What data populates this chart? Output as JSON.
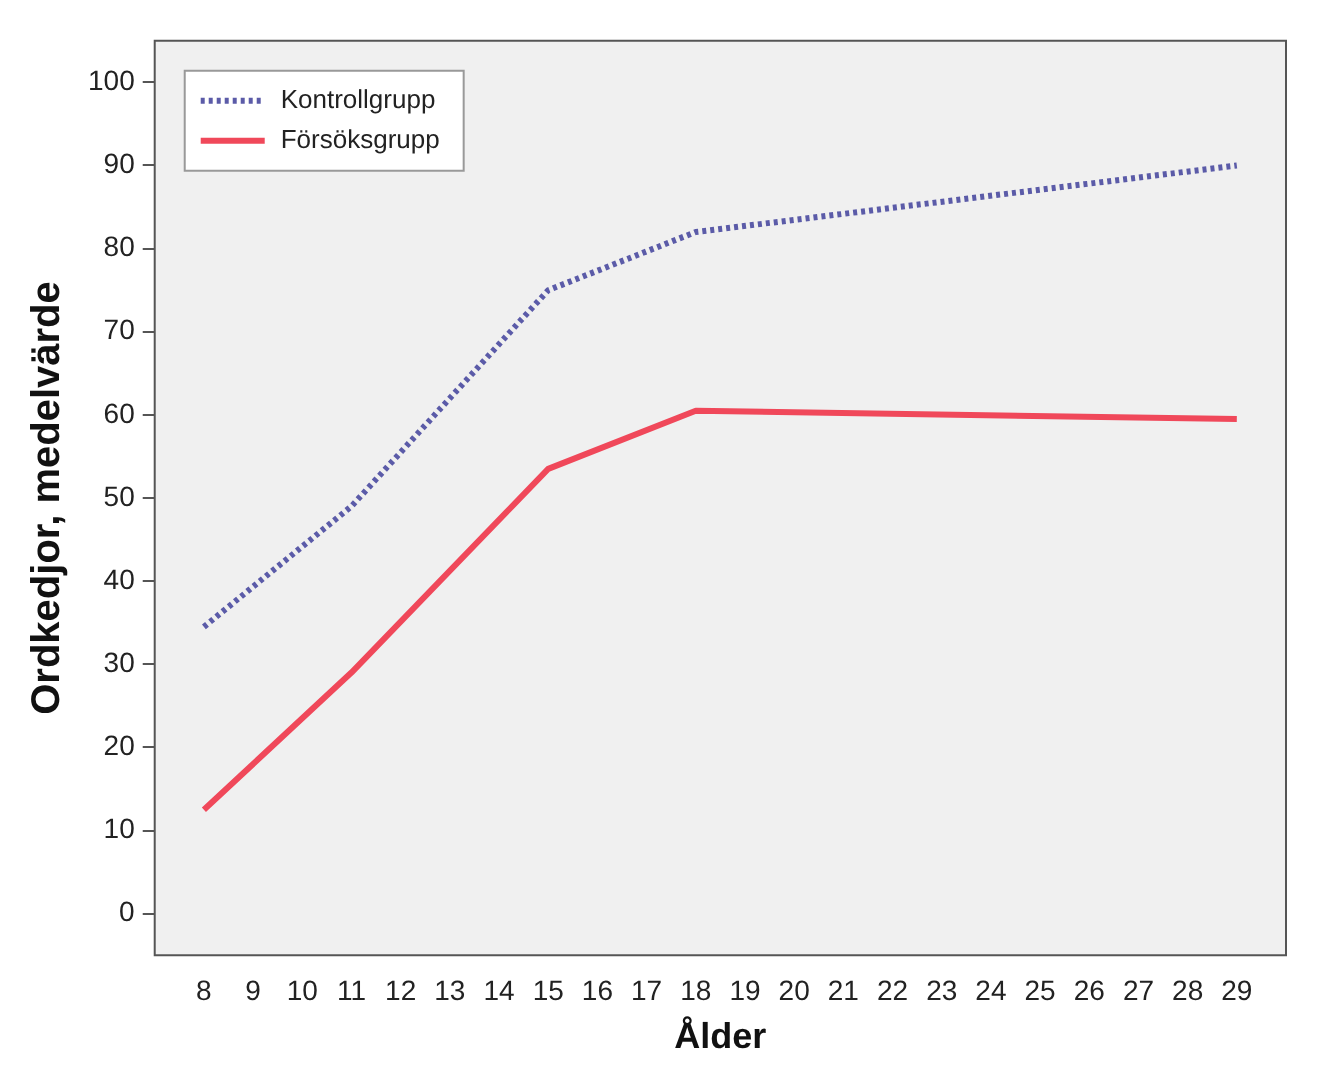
{
  "chart_data": {
    "type": "line",
    "xlabel": "Ålder",
    "ylabel": "Ordkedjor, medelvärde",
    "x": [
      8,
      11,
      15,
      18,
      29
    ],
    "series": [
      {
        "name": "Kontrollgrupp",
        "color": "#5b5ba8",
        "line_style": "dotted",
        "values": [
          34.5,
          49,
          75,
          82,
          90
        ]
      },
      {
        "name": "Försöksgrupp",
        "color": "#f0485a",
        "line_style": "solid",
        "values": [
          12.5,
          29,
          53.5,
          60.5,
          59.5
        ]
      }
    ],
    "xlim": [
      7,
      30
    ],
    "xticks": [
      8,
      9,
      10,
      11,
      12,
      13,
      14,
      15,
      16,
      17,
      18,
      19,
      20,
      21,
      22,
      23,
      24,
      25,
      26,
      27,
      28,
      29
    ],
    "ylim": [
      -5,
      105
    ],
    "yticks": [
      0,
      10,
      20,
      30,
      40,
      50,
      60,
      70,
      80,
      90,
      100
    ],
    "grid": false,
    "legend": "top left",
    "marker": "none"
  }
}
